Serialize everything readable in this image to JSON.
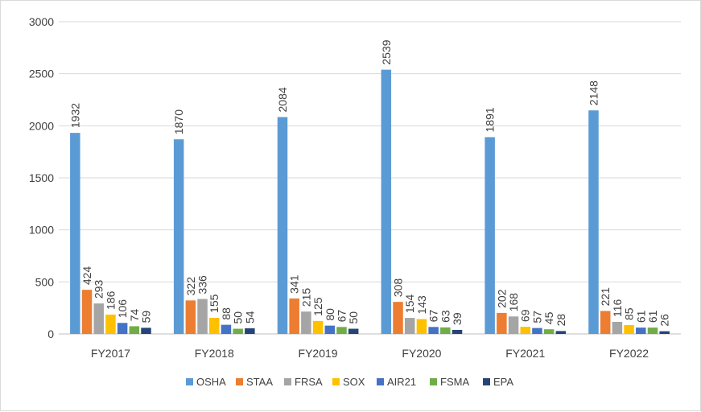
{
  "chart_data": {
    "type": "bar",
    "title": "",
    "xlabel": "",
    "ylabel": "",
    "ylim": [
      0,
      3000
    ],
    "yticks": [
      0,
      500,
      1000,
      1500,
      2000,
      2500,
      3000
    ],
    "grid": true,
    "legend_position": "bottom",
    "categories": [
      "FY2017",
      "FY2018",
      "FY2019",
      "FY2020",
      "FY2021",
      "FY2022"
    ],
    "series": [
      {
        "name": "OSHA",
        "color": "#5b9bd5",
        "values": [
          1932,
          1870,
          2084,
          2539,
          1891,
          2148
        ]
      },
      {
        "name": "STAA",
        "color": "#ed7d31",
        "values": [
          424,
          322,
          341,
          308,
          202,
          221
        ]
      },
      {
        "name": "FRSA",
        "color": "#a5a5a5",
        "values": [
          293,
          336,
          215,
          154,
          168,
          116
        ]
      },
      {
        "name": "SOX",
        "color": "#ffc000",
        "values": [
          186,
          155,
          125,
          143,
          69,
          85
        ]
      },
      {
        "name": "AIR21",
        "color": "#4472c4",
        "values": [
          106,
          88,
          80,
          67,
          57,
          61
        ]
      },
      {
        "name": "FSMA",
        "color": "#70ad47",
        "values": [
          74,
          50,
          67,
          63,
          45,
          61
        ]
      },
      {
        "name": "EPA",
        "color": "#264478",
        "values": [
          59,
          54,
          50,
          39,
          28,
          26
        ]
      }
    ]
  }
}
